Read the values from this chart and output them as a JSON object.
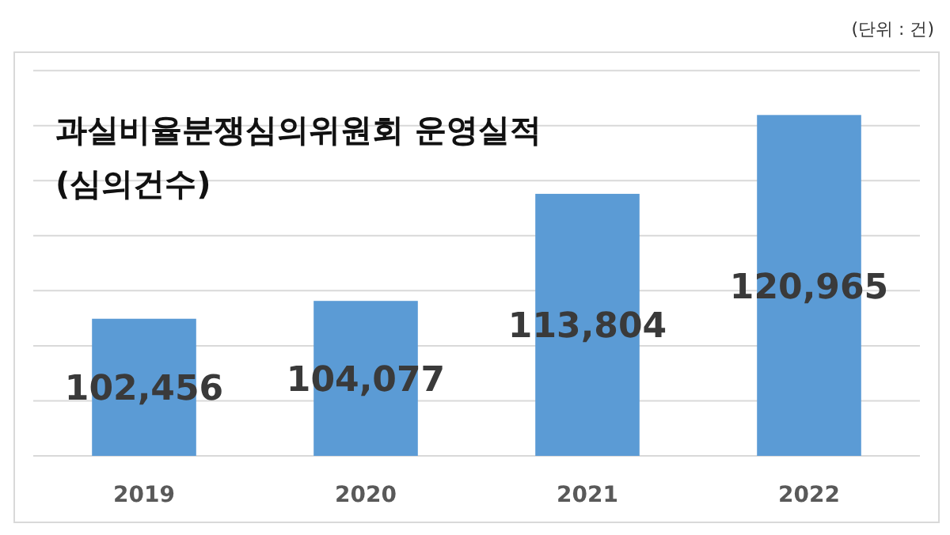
{
  "chart_data": {
    "type": "bar",
    "title": "과실비율분쟁심의위원회 운영실적",
    "subtitle": "(심의건수)",
    "annotations": [
      "(단위 : 건)"
    ],
    "categories": [
      "2019",
      "2020",
      "2021",
      "2022"
    ],
    "values": [
      102456,
      104077,
      113804,
      120965
    ],
    "color": "#5b9bd5",
    "ylim": [
      90000,
      125000
    ],
    "yticks": [
      {
        "value": 90000,
        "label": null
      },
      {
        "value": 95000,
        "label": null
      },
      {
        "value": 100000,
        "label": null
      },
      {
        "value": 105000,
        "label": null
      },
      {
        "value": 110000,
        "label": null
      },
      {
        "value": 115000,
        "label": null
      },
      {
        "value": 120000,
        "label": null
      },
      {
        "value": 125000,
        "label": null
      }
    ],
    "value_labels": [
      "102,456",
      "104,077",
      "113,804",
      "120,965"
    ],
    "grid": "y"
  }
}
